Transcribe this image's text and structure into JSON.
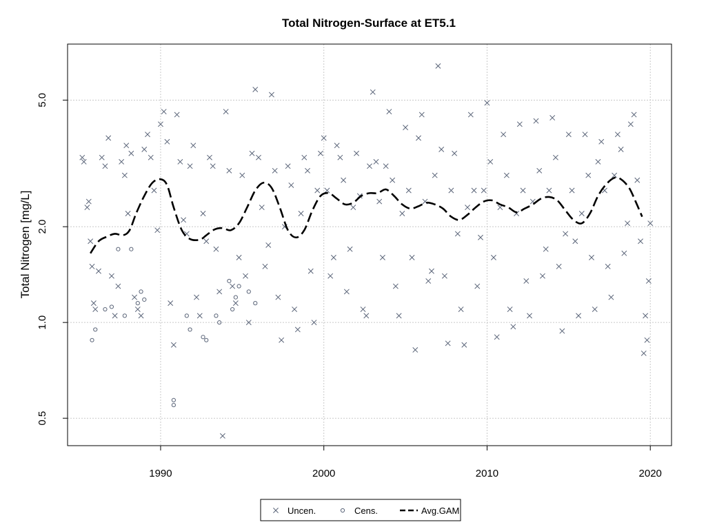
{
  "chart_data": {
    "type": "scatter",
    "title": "Total Nitrogen-Surface at ET5.1",
    "xlabel": "",
    "ylabel": "Total Nitrogen [mg/L]",
    "xlim": [
      1984.3,
      2021.3
    ],
    "ylim": [
      0.41,
      7.5
    ],
    "y_scale": "log",
    "x_ticks": [
      1990,
      2000,
      2010,
      2020
    ],
    "x_tick_labels": [
      "1990",
      "2000",
      "2010",
      "2020"
    ],
    "y_ticks": [
      0.5,
      1.0,
      2.0,
      5.0
    ],
    "y_tick_labels": [
      "0.5",
      "1.0",
      "2.0",
      "5.0"
    ],
    "grid": true,
    "reference_line_y": 1.0,
    "legend": {
      "placement": "bottom",
      "entries": [
        {
          "label": "Uncen.",
          "symbol": "x"
        },
        {
          "label": "Cens.",
          "symbol": "o"
        },
        {
          "label": "Avg.GAM",
          "symbol": "dashed-line"
        }
      ]
    },
    "colors": {
      "points": "#5a6478",
      "gam": "#000000",
      "grid": "#c8c8c8",
      "frame": "#000000"
    },
    "series": [
      {
        "name": "Uncen.",
        "marker": "x",
        "points": [
          [
            1985.2,
            3.3
          ],
          [
            1985.3,
            3.2
          ],
          [
            1985.5,
            2.3
          ],
          [
            1985.6,
            2.4
          ],
          [
            1985.7,
            1.8
          ],
          [
            1985.8,
            1.5
          ],
          [
            1985.9,
            1.15
          ],
          [
            1986.0,
            1.1
          ],
          [
            1986.2,
            1.45
          ],
          [
            1986.4,
            3.3
          ],
          [
            1986.6,
            3.1
          ],
          [
            1986.8,
            3.8
          ],
          [
            1987.0,
            1.4
          ],
          [
            1987.2,
            1.05
          ],
          [
            1987.4,
            1.3
          ],
          [
            1987.6,
            3.2
          ],
          [
            1987.8,
            2.9
          ],
          [
            1987.9,
            3.6
          ],
          [
            1988.0,
            2.2
          ],
          [
            1988.2,
            3.4
          ],
          [
            1988.4,
            1.2
          ],
          [
            1988.6,
            1.1
          ],
          [
            1988.8,
            1.05
          ],
          [
            1989.0,
            3.5
          ],
          [
            1989.2,
            3.9
          ],
          [
            1989.4,
            3.3
          ],
          [
            1989.6,
            2.6
          ],
          [
            1989.8,
            1.95
          ],
          [
            1990.0,
            4.2
          ],
          [
            1990.2,
            4.6
          ],
          [
            1990.4,
            3.7
          ],
          [
            1990.6,
            1.15
          ],
          [
            1990.8,
            0.85
          ],
          [
            1991.0,
            4.5
          ],
          [
            1991.2,
            3.2
          ],
          [
            1991.4,
            2.1
          ],
          [
            1991.6,
            1.9
          ],
          [
            1991.8,
            3.1
          ],
          [
            1992.0,
            3.6
          ],
          [
            1992.2,
            1.2
          ],
          [
            1992.4,
            1.05
          ],
          [
            1992.6,
            2.2
          ],
          [
            1992.8,
            1.8
          ],
          [
            1993.0,
            3.3
          ],
          [
            1993.2,
            3.1
          ],
          [
            1993.4,
            1.7
          ],
          [
            1993.6,
            1.25
          ],
          [
            1993.8,
            0.44
          ],
          [
            1994.0,
            4.6
          ],
          [
            1994.2,
            3.0
          ],
          [
            1994.4,
            1.3
          ],
          [
            1994.6,
            1.15
          ],
          [
            1994.8,
            1.6
          ],
          [
            1995.0,
            2.9
          ],
          [
            1995.2,
            1.4
          ],
          [
            1995.4,
            1.0
          ],
          [
            1995.6,
            3.4
          ],
          [
            1995.8,
            5.4
          ],
          [
            1996.0,
            3.3
          ],
          [
            1996.2,
            2.3
          ],
          [
            1996.4,
            1.5
          ],
          [
            1996.6,
            1.75
          ],
          [
            1996.8,
            5.2
          ],
          [
            1997.0,
            3.0
          ],
          [
            1997.2,
            1.2
          ],
          [
            1997.4,
            0.88
          ],
          [
            1997.6,
            2.0
          ],
          [
            1997.8,
            3.1
          ],
          [
            1998.0,
            2.7
          ],
          [
            1998.2,
            1.1
          ],
          [
            1998.4,
            0.95
          ],
          [
            1998.6,
            2.2
          ],
          [
            1998.8,
            3.3
          ],
          [
            1999.0,
            3.0
          ],
          [
            1999.2,
            1.45
          ],
          [
            1999.4,
            1.0
          ],
          [
            1999.6,
            2.6
          ],
          [
            1999.8,
            3.4
          ],
          [
            2000.0,
            3.8
          ],
          [
            2000.2,
            2.6
          ],
          [
            2000.4,
            1.4
          ],
          [
            2000.6,
            1.6
          ],
          [
            2000.8,
            3.6
          ],
          [
            2001.0,
            3.3
          ],
          [
            2001.2,
            2.8
          ],
          [
            2001.4,
            1.25
          ],
          [
            2001.6,
            1.7
          ],
          [
            2001.8,
            2.3
          ],
          [
            2002.0,
            3.4
          ],
          [
            2002.2,
            2.5
          ],
          [
            2002.4,
            1.1
          ],
          [
            2002.6,
            1.05
          ],
          [
            2002.8,
            3.1
          ],
          [
            2003.0,
            5.3
          ],
          [
            2003.2,
            3.2
          ],
          [
            2003.4,
            2.4
          ],
          [
            2003.6,
            1.6
          ],
          [
            2003.8,
            3.1
          ],
          [
            2004.0,
            4.6
          ],
          [
            2004.2,
            2.8
          ],
          [
            2004.4,
            1.3
          ],
          [
            2004.6,
            1.05
          ],
          [
            2004.8,
            2.2
          ],
          [
            2005.0,
            4.1
          ],
          [
            2005.2,
            2.6
          ],
          [
            2005.4,
            1.6
          ],
          [
            2005.6,
            0.82
          ],
          [
            2005.8,
            3.8
          ],
          [
            2006.0,
            4.5
          ],
          [
            2006.2,
            2.4
          ],
          [
            2006.4,
            1.35
          ],
          [
            2006.6,
            1.45
          ],
          [
            2006.8,
            2.9
          ],
          [
            2007.0,
            6.4
          ],
          [
            2007.2,
            3.5
          ],
          [
            2007.4,
            1.4
          ],
          [
            2007.6,
            0.86
          ],
          [
            2007.8,
            2.6
          ],
          [
            2008.0,
            3.4
          ],
          [
            2008.2,
            1.9
          ],
          [
            2008.4,
            1.1
          ],
          [
            2008.6,
            0.85
          ],
          [
            2008.8,
            2.3
          ],
          [
            2009.0,
            4.5
          ],
          [
            2009.2,
            2.6
          ],
          [
            2009.4,
            1.3
          ],
          [
            2009.6,
            1.85
          ],
          [
            2009.8,
            2.6
          ],
          [
            2010.0,
            4.9
          ],
          [
            2010.2,
            3.2
          ],
          [
            2010.4,
            1.6
          ],
          [
            2010.6,
            0.9
          ],
          [
            2010.8,
            2.3
          ],
          [
            2011.0,
            3.9
          ],
          [
            2011.2,
            2.9
          ],
          [
            2011.4,
            1.1
          ],
          [
            2011.6,
            0.97
          ],
          [
            2011.8,
            2.2
          ],
          [
            2012.0,
            4.2
          ],
          [
            2012.2,
            2.6
          ],
          [
            2012.4,
            1.35
          ],
          [
            2012.6,
            1.05
          ],
          [
            2012.8,
            2.4
          ],
          [
            2013.0,
            4.3
          ],
          [
            2013.2,
            3.0
          ],
          [
            2013.4,
            1.4
          ],
          [
            2013.6,
            1.7
          ],
          [
            2013.8,
            2.6
          ],
          [
            2014.0,
            4.4
          ],
          [
            2014.2,
            3.3
          ],
          [
            2014.4,
            1.5
          ],
          [
            2014.6,
            0.94
          ],
          [
            2014.8,
            1.9
          ],
          [
            2015.0,
            3.9
          ],
          [
            2015.2,
            2.6
          ],
          [
            2015.4,
            1.8
          ],
          [
            2015.6,
            1.05
          ],
          [
            2015.8,
            2.2
          ],
          [
            2016.0,
            3.9
          ],
          [
            2016.2,
            2.9
          ],
          [
            2016.4,
            1.6
          ],
          [
            2016.6,
            1.1
          ],
          [
            2016.8,
            3.2
          ],
          [
            2017.0,
            3.7
          ],
          [
            2017.2,
            2.6
          ],
          [
            2017.4,
            1.5
          ],
          [
            2017.6,
            1.2
          ],
          [
            2017.8,
            2.9
          ],
          [
            2018.0,
            3.9
          ],
          [
            2018.2,
            3.5
          ],
          [
            2018.4,
            1.65
          ],
          [
            2018.6,
            2.05
          ],
          [
            2018.8,
            4.2
          ],
          [
            2019.0,
            4.5
          ],
          [
            2019.2,
            2.8
          ],
          [
            2019.4,
            1.8
          ],
          [
            2019.6,
            0.8
          ],
          [
            2019.8,
            0.88
          ],
          [
            2020.0,
            2.05
          ],
          [
            2019.9,
            1.35
          ],
          [
            2019.7,
            1.05
          ]
        ]
      },
      {
        "name": "Cens.",
        "marker": "o",
        "points": [
          [
            1985.8,
            0.88
          ],
          [
            1986.0,
            0.95
          ],
          [
            1986.6,
            1.1
          ],
          [
            1987.0,
            1.12
          ],
          [
            1987.4,
            1.7
          ],
          [
            1987.8,
            1.05
          ],
          [
            1988.2,
            1.7
          ],
          [
            1988.6,
            1.15
          ],
          [
            1988.8,
            1.25
          ],
          [
            1989.0,
            1.18
          ],
          [
            1990.8,
            0.57
          ],
          [
            1990.8,
            0.55
          ],
          [
            1991.6,
            1.05
          ],
          [
            1991.8,
            0.95
          ],
          [
            1992.6,
            0.9
          ],
          [
            1992.8,
            0.88
          ],
          [
            1993.4,
            1.05
          ],
          [
            1993.6,
            1.0
          ],
          [
            1994.2,
            1.35
          ],
          [
            1994.4,
            1.1
          ],
          [
            1994.6,
            1.2
          ],
          [
            1994.8,
            1.3
          ],
          [
            1995.4,
            1.25
          ],
          [
            1995.8,
            1.15
          ]
        ]
      },
      {
        "name": "Avg.GAM",
        "marker": "dashed-line",
        "points": [
          [
            1985.7,
            1.65
          ],
          [
            1986.2,
            1.8
          ],
          [
            1986.7,
            1.86
          ],
          [
            1987.2,
            1.9
          ],
          [
            1987.7,
            1.88
          ],
          [
            1988.1,
            1.95
          ],
          [
            1988.5,
            2.2
          ],
          [
            1989.0,
            2.5
          ],
          [
            1989.5,
            2.75
          ],
          [
            1990.0,
            2.82
          ],
          [
            1990.4,
            2.7
          ],
          [
            1990.8,
            2.3
          ],
          [
            1991.3,
            1.95
          ],
          [
            1991.8,
            1.83
          ],
          [
            1992.4,
            1.82
          ],
          [
            1992.8,
            1.88
          ],
          [
            1993.3,
            1.96
          ],
          [
            1993.8,
            1.98
          ],
          [
            1994.3,
            1.95
          ],
          [
            1994.8,
            2.05
          ],
          [
            1995.3,
            2.3
          ],
          [
            1995.8,
            2.6
          ],
          [
            1996.3,
            2.75
          ],
          [
            1996.8,
            2.65
          ],
          [
            1997.3,
            2.3
          ],
          [
            1997.8,
            1.95
          ],
          [
            1998.3,
            1.85
          ],
          [
            1998.8,
            1.95
          ],
          [
            1999.3,
            2.25
          ],
          [
            1999.8,
            2.5
          ],
          [
            2000.3,
            2.55
          ],
          [
            2000.8,
            2.45
          ],
          [
            2001.3,
            2.35
          ],
          [
            2001.8,
            2.38
          ],
          [
            2002.3,
            2.5
          ],
          [
            2002.8,
            2.55
          ],
          [
            2003.3,
            2.55
          ],
          [
            2003.8,
            2.62
          ],
          [
            2004.3,
            2.5
          ],
          [
            2004.8,
            2.35
          ],
          [
            2005.3,
            2.28
          ],
          [
            2005.8,
            2.32
          ],
          [
            2006.3,
            2.38
          ],
          [
            2006.8,
            2.35
          ],
          [
            2007.3,
            2.28
          ],
          [
            2007.8,
            2.15
          ],
          [
            2008.3,
            2.1
          ],
          [
            2008.8,
            2.18
          ],
          [
            2009.3,
            2.3
          ],
          [
            2009.8,
            2.4
          ],
          [
            2010.3,
            2.42
          ],
          [
            2010.8,
            2.35
          ],
          [
            2011.3,
            2.3
          ],
          [
            2011.8,
            2.22
          ],
          [
            2012.3,
            2.28
          ],
          [
            2012.8,
            2.35
          ],
          [
            2013.3,
            2.45
          ],
          [
            2013.8,
            2.48
          ],
          [
            2014.3,
            2.42
          ],
          [
            2014.8,
            2.25
          ],
          [
            2015.3,
            2.1
          ],
          [
            2015.8,
            2.05
          ],
          [
            2016.3,
            2.2
          ],
          [
            2016.8,
            2.5
          ],
          [
            2017.3,
            2.72
          ],
          [
            2017.8,
            2.85
          ],
          [
            2018.2,
            2.82
          ],
          [
            2018.7,
            2.65
          ],
          [
            2019.1,
            2.4
          ],
          [
            2019.5,
            2.15
          ]
        ]
      }
    ]
  }
}
